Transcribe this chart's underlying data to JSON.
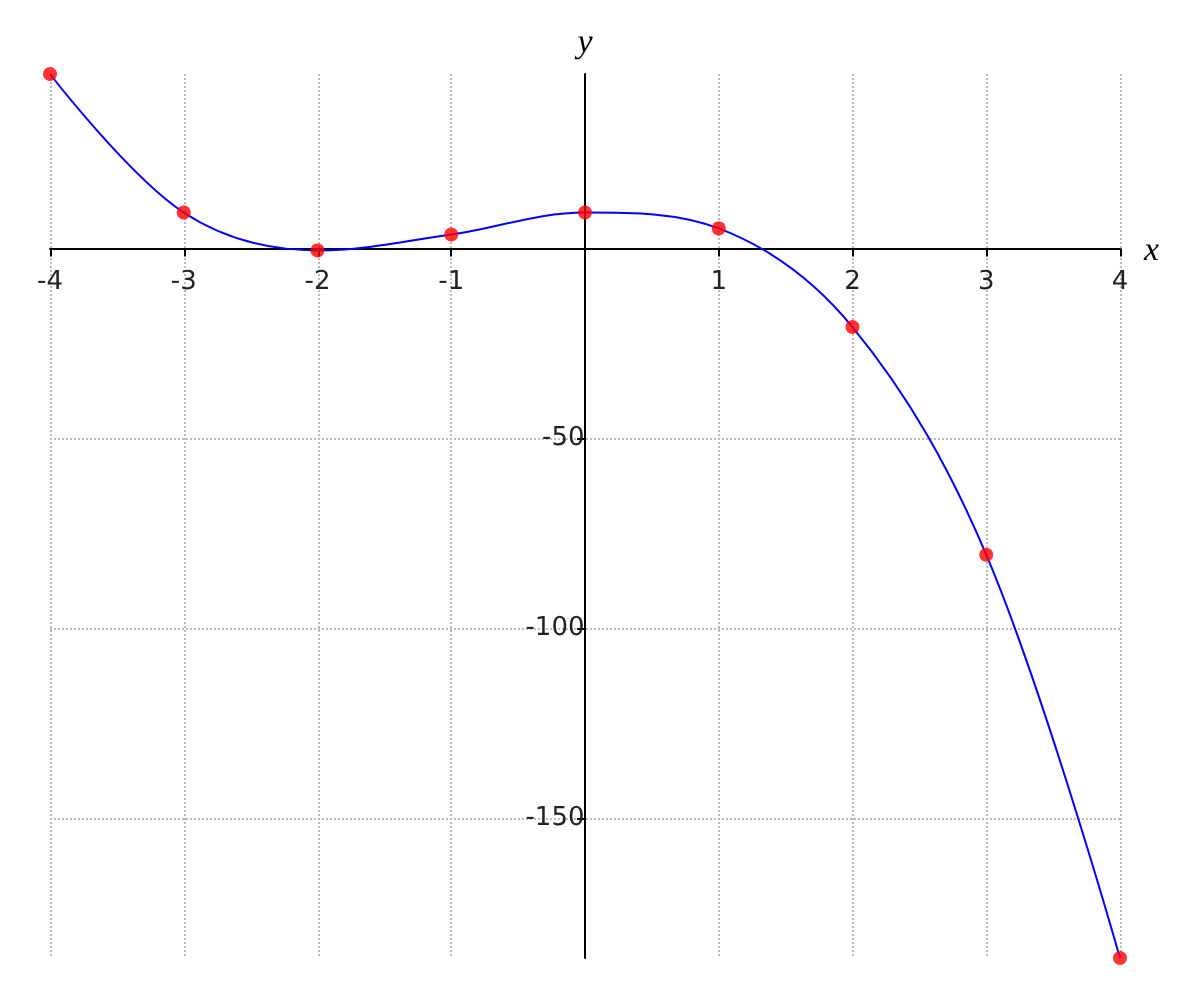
{
  "chart_data": {
    "type": "line",
    "xlabel": "x",
    "ylabel": "y",
    "x": [
      -4,
      -3,
      -2,
      -1,
      0,
      1,
      2,
      3,
      4
    ],
    "series": [
      {
        "color": "#0000ff",
        "marker": "none",
        "values": [
          46,
          9.5,
          -0.5,
          3.7,
          9.5,
          5.3,
          -20.7,
          -80.7,
          -187
        ]
      },
      {
        "type": "scatter",
        "color": "#ff0000",
        "marker": "circle",
        "values": [
          46,
          9.5,
          -0.5,
          3.7,
          9.5,
          5.3,
          -20.7,
          -80.7,
          -187
        ]
      }
    ],
    "xlim": [
      -4,
      4
    ],
    "ylim": [
      -187,
      46
    ],
    "xticks": [
      -4,
      -3,
      -2,
      -1,
      1,
      2,
      3,
      4
    ],
    "yticks": [
      -50,
      -100,
      -150
    ],
    "grid": true
  }
}
